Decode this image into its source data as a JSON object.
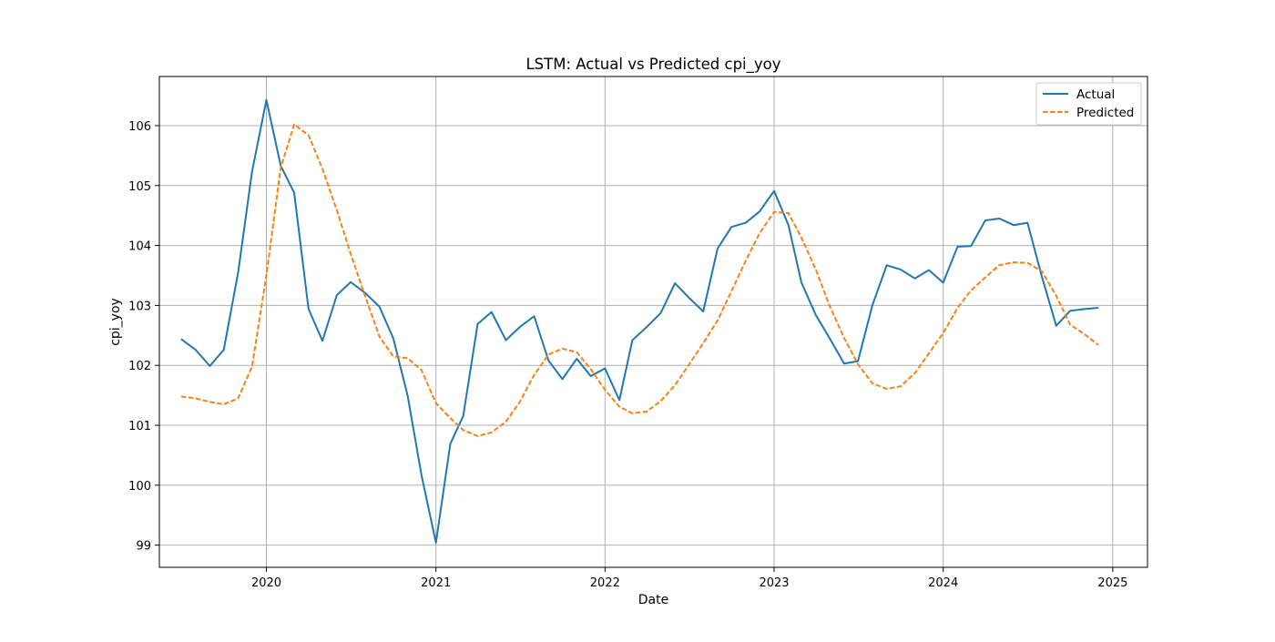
{
  "chart_data": {
    "type": "line",
    "title": "LSTM: Actual vs Predicted cpi_yoy",
    "xlabel": "Date",
    "ylabel": "cpi_yoy",
    "x_axis_type": "date",
    "xlim": [
      "2019-05-15",
      "2025-03-17"
    ],
    "ylim": [
      98.63,
      106.82
    ],
    "x_ticks": [
      "2020",
      "2021",
      "2022",
      "2023",
      "2024",
      "2025"
    ],
    "y_ticks": [
      "99",
      "100",
      "101",
      "102",
      "103",
      "104",
      "105",
      "106"
    ],
    "grid": true,
    "legend_position": "top-right",
    "x": [
      "2019-07-01",
      "2019-08-01",
      "2019-09-01",
      "2019-10-01",
      "2019-11-01",
      "2019-12-01",
      "2020-01-01",
      "2020-02-01",
      "2020-03-01",
      "2020-04-01",
      "2020-05-01",
      "2020-06-01",
      "2020-07-01",
      "2020-08-01",
      "2020-09-01",
      "2020-10-01",
      "2020-11-01",
      "2020-12-01",
      "2021-01-01",
      "2021-02-01",
      "2021-03-01",
      "2021-04-01",
      "2021-05-01",
      "2021-06-01",
      "2021-07-01",
      "2021-08-01",
      "2021-09-01",
      "2021-10-01",
      "2021-11-01",
      "2021-12-01",
      "2022-01-01",
      "2022-02-01",
      "2022-03-01",
      "2022-04-01",
      "2022-05-01",
      "2022-06-01",
      "2022-07-01",
      "2022-08-01",
      "2022-09-01",
      "2022-10-01",
      "2022-11-01",
      "2022-12-01",
      "2023-01-01",
      "2023-02-01",
      "2023-03-01",
      "2023-04-01",
      "2023-05-01",
      "2023-06-01",
      "2023-07-01",
      "2023-08-01",
      "2023-09-01",
      "2023-10-01",
      "2023-11-01",
      "2023-12-01",
      "2024-01-01",
      "2024-02-01",
      "2024-03-01",
      "2024-04-01",
      "2024-05-01",
      "2024-06-01",
      "2024-07-01",
      "2024-08-01",
      "2024-09-01",
      "2024-10-01",
      "2024-11-01",
      "2024-12-01"
    ],
    "series": [
      {
        "name": "Actual",
        "color": "#1f77b4",
        "style": "solid",
        "values": [
          102.44,
          102.26,
          101.99,
          102.26,
          103.55,
          105.23,
          106.43,
          105.33,
          104.88,
          102.94,
          102.41,
          103.17,
          103.39,
          103.21,
          102.98,
          102.45,
          101.49,
          100.16,
          99.04,
          100.69,
          101.16,
          102.69,
          102.89,
          102.42,
          102.64,
          102.82,
          102.08,
          101.77,
          102.11,
          101.82,
          101.95,
          101.42,
          102.42,
          102.64,
          102.87,
          103.37,
          103.13,
          102.9,
          103.95,
          104.31,
          104.38,
          104.57,
          104.91,
          104.34,
          103.38,
          102.84,
          102.45,
          102.03,
          102.07,
          103.0,
          103.67,
          103.6,
          103.45,
          103.59,
          103.38,
          103.98,
          103.99,
          104.42,
          104.45,
          104.34,
          104.38,
          103.48,
          102.66,
          102.91,
          102.94,
          102.96
        ]
      },
      {
        "name": "Predicted",
        "color": "#ff7f0e",
        "style": "dashed",
        "values": [
          101.48,
          101.45,
          101.39,
          101.35,
          101.45,
          101.98,
          103.5,
          105.3,
          106.02,
          105.84,
          105.28,
          104.59,
          103.86,
          103.16,
          102.48,
          102.15,
          102.12,
          101.92,
          101.37,
          101.12,
          100.92,
          100.82,
          100.88,
          101.06,
          101.39,
          101.84,
          102.18,
          102.28,
          102.22,
          101.94,
          101.59,
          101.31,
          101.2,
          101.23,
          101.4,
          101.67,
          102.01,
          102.37,
          102.75,
          103.24,
          103.75,
          104.21,
          104.56,
          104.54,
          104.13,
          103.6,
          102.99,
          102.46,
          102.02,
          101.7,
          101.61,
          101.65,
          101.87,
          102.2,
          102.54,
          102.96,
          103.25,
          103.47,
          103.67,
          103.72,
          103.71,
          103.57,
          103.16,
          102.68,
          102.52,
          102.34
        ]
      }
    ]
  }
}
